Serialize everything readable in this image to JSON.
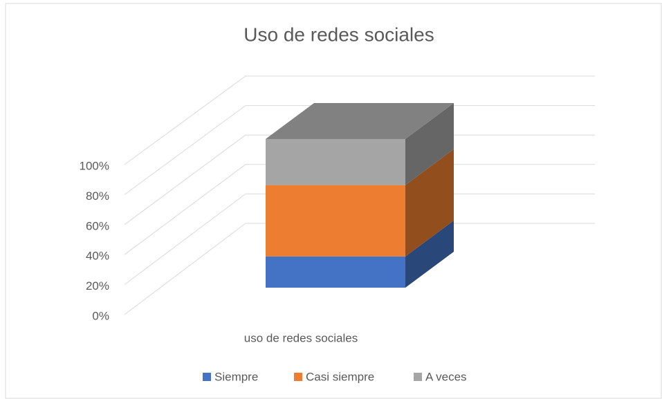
{
  "chart_data": {
    "type": "bar3d_stacked_percent",
    "title": "Uso de redes sociales",
    "categories": [
      "uso de redes sociales"
    ],
    "series": [
      {
        "name": "Siempre",
        "color": "#4472c4",
        "values": [
          21
        ]
      },
      {
        "name": "Casi siempre",
        "color": "#ed7d31",
        "values": [
          48
        ]
      },
      {
        "name": "A veces",
        "color": "#a5a5a5",
        "values": [
          31
        ]
      }
    ],
    "ylim": [
      0,
      100
    ],
    "yticks": [
      {
        "value": 0,
        "label": "0%"
      },
      {
        "value": 20,
        "label": "20%"
      },
      {
        "value": 40,
        "label": "40%"
      },
      {
        "value": 60,
        "label": "60%"
      },
      {
        "value": 80,
        "label": "80%"
      },
      {
        "value": 100,
        "label": "100%"
      }
    ],
    "grid": true,
    "legend": "bottom"
  }
}
